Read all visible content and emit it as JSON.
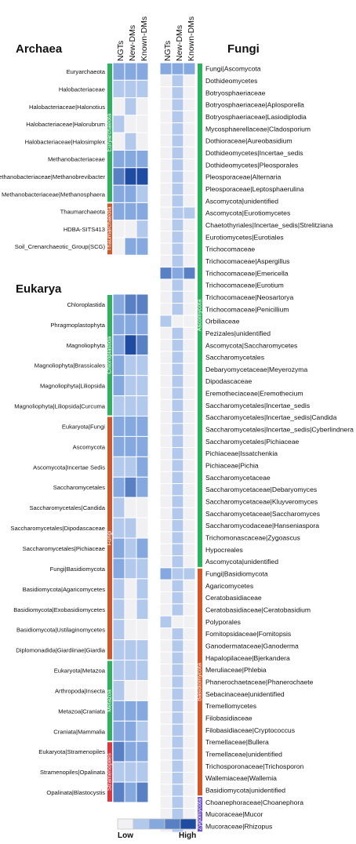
{
  "chart_data": [
    {
      "type": "heatmap",
      "title": "",
      "columns": [
        "NGTs",
        "New-DMs",
        "Known-DMs"
      ],
      "scale": [
        "#f1f1f4",
        "#b3c9ec",
        "#85a8df",
        "#5a80c4",
        "#1f4ba0"
      ],
      "sections": [
        {
          "name": "Archaea",
          "rows": [
            {
              "label": "Euryarchaeota",
              "values": [
                2,
                2,
                2
              ]
            },
            {
              "label": "Halobacteriaceae",
              "values": [
                1,
                1,
                1
              ]
            },
            {
              "label": "Halobacteriaceae|Halonotius",
              "values": [
                0,
                1,
                0
              ]
            },
            {
              "label": "Halobacteriaceae|Halorubrum",
              "values": [
                1,
                0,
                0
              ]
            },
            {
              "label": "Halobacteriaceae|Halosimplex",
              "values": [
                0,
                1,
                0
              ]
            },
            {
              "label": "Methanobacteriaceae",
              "values": [
                2,
                2,
                2
              ]
            },
            {
              "label": "Methanobacteriaceae|Methanobrevibacter",
              "values": [
                3,
                4,
                4
              ]
            },
            {
              "label": "Methanobacteriaceae|Methanosphaera",
              "values": [
                2,
                2,
                1
              ]
            },
            {
              "label": "Thaumarchaeota",
              "values": [
                2,
                2,
                2
              ]
            },
            {
              "label": "HDBA-SITS413",
              "values": [
                0,
                0,
                1
              ]
            },
            {
              "label": "Soil_Crenarchaeotic_Group(SCG)",
              "values": [
                0,
                2,
                2
              ]
            }
          ],
          "groups": [
            {
              "name": "Euryarchaeota",
              "from": 0,
              "to": 7,
              "color": "#2db35d"
            },
            {
              "name": "Thaumarchaeota",
              "from": 8,
              "to": 10,
              "color": "#d2572a"
            }
          ]
        },
        {
          "name": "Eukarya",
          "rows": [
            {
              "label": "Chloroplastida",
              "values": [
                2,
                3,
                3
              ]
            },
            {
              "label": "Phragmoplastophyta",
              "values": [
                2,
                2,
                2
              ]
            },
            {
              "label": "Magnoliophyta",
              "values": [
                2,
                4,
                3
              ]
            },
            {
              "label": "Magnoliophyta|Brassicales",
              "values": [
                2,
                1,
                1
              ]
            },
            {
              "label": "Magnoliophyta|Liliopsida",
              "values": [
                2,
                1,
                1
              ]
            },
            {
              "label": "Magnoliophyta|Liliopsida|Curcuma",
              "values": [
                1,
                1,
                1
              ]
            },
            {
              "label": "Eukaryota|Fungi",
              "values": [
                2,
                2,
                2
              ]
            },
            {
              "label": "Ascomycota",
              "values": [
                2,
                2,
                2
              ]
            },
            {
              "label": "Ascomycota|Incertae Sedis",
              "values": [
                1,
                1,
                2
              ]
            },
            {
              "label": "Saccharomycetales",
              "values": [
                2,
                3,
                2
              ]
            },
            {
              "label": "Saccharomycetales|Candida",
              "values": [
                1,
                0,
                0
              ]
            },
            {
              "label": "Saccharomycetales|Dipodascaceae",
              "values": [
                1,
                1,
                0
              ]
            },
            {
              "label": "Saccharomycetales|Pichiaceae",
              "values": [
                2,
                1,
                2
              ]
            },
            {
              "label": "Fungi|Basidiomycota",
              "values": [
                2,
                1,
                1
              ]
            },
            {
              "label": "Basidiomycota|Agaricomycetes",
              "values": [
                1,
                0,
                1
              ]
            },
            {
              "label": "Basidiomycota|Exobasidiomycetes",
              "values": [
                1,
                0,
                1
              ]
            },
            {
              "label": "Basidiomycota|Ustilaginomycetes",
              "values": [
                1,
                0,
                0
              ]
            },
            {
              "label": "Diplomonadida|Giardiinae|Giardia",
              "values": [
                1,
                1,
                1
              ]
            },
            {
              "label": "Eukaryota|Metazoa",
              "values": [
                1,
                1,
                1
              ]
            },
            {
              "label": "Arthropoda|Insecta",
              "values": [
                1,
                0,
                0
              ]
            },
            {
              "label": "Metazoa|Craniata",
              "values": [
                2,
                2,
                2
              ]
            },
            {
              "label": "Craniata|Mammalia",
              "values": [
                2,
                2,
                1
              ]
            },
            {
              "label": "Eukaryota|Stramenopiles",
              "values": [
                3,
                2,
                2
              ]
            },
            {
              "label": "Stramenopiles|Opalinata",
              "values": [
                1,
                1,
                1
              ]
            },
            {
              "label": "Opalinata|Blastocystis",
              "values": [
                3,
                2,
                3
              ]
            }
          ],
          "groups": [
            {
              "name": "Chloroplastida",
              "from": 0,
              "to": 5,
              "color": "#2db35d"
            },
            {
              "name": "Fungi",
              "from": 6,
              "to": 17,
              "color": "#d2572a"
            },
            {
              "name": "Metazoa",
              "from": 18,
              "to": 21,
              "color": "#2db35d"
            },
            {
              "name": "Stramenopiles",
              "from": 22,
              "to": 24,
              "color": "#e2343c"
            }
          ]
        },
        {
          "name": "Fungi",
          "rows": [
            {
              "label": "Fungi|Ascomycota",
              "values": [
                2,
                2,
                2
              ]
            },
            {
              "label": "Dothideomycetes",
              "values": [
                0,
                1,
                0
              ]
            },
            {
              "label": "Botryosphaeriaceae",
              "values": [
                0,
                1,
                0
              ]
            },
            {
              "label": "Botryosphaeriaceae|Aplosporella",
              "values": [
                0,
                1,
                0
              ]
            },
            {
              "label": "Botryosphaeriaceae|Lasiodiplodia",
              "values": [
                0,
                1,
                0
              ]
            },
            {
              "label": "Mycosphaerellaceae|Cladosporium",
              "values": [
                0,
                1,
                0
              ]
            },
            {
              "label": "Dothioraceae|Aureobasidium",
              "values": [
                0,
                1,
                0
              ]
            },
            {
              "label": "Dothideomycetes|Incertae_sedis",
              "values": [
                0,
                1,
                0
              ]
            },
            {
              "label": "Dothideomycetes|Pleosporales",
              "values": [
                0,
                1,
                0
              ]
            },
            {
              "label": "Pleosporaceae|Alternaria",
              "values": [
                0,
                1,
                0
              ]
            },
            {
              "label": "Pleosporaceae|Leptosphaerulina",
              "values": [
                0,
                1,
                0
              ]
            },
            {
              "label": "Ascomycota|unidentified",
              "values": [
                0,
                1,
                0
              ]
            },
            {
              "label": "Ascomycota|Eurotiomycetes",
              "values": [
                0,
                1,
                1
              ]
            },
            {
              "label": "Chaetothyriales|Incertae_sedis|Strelitziana",
              "values": [
                0,
                1,
                0
              ]
            },
            {
              "label": "Eurotiomycetes|Eurotiales",
              "values": [
                0,
                1,
                0
              ]
            },
            {
              "label": "Trichocomaceae",
              "values": [
                0,
                1,
                0
              ]
            },
            {
              "label": "Trichocomaceae|Aspergillus",
              "values": [
                0,
                1,
                0
              ]
            },
            {
              "label": "Trichocomaceae|Emericella",
              "values": [
                3,
                2,
                3
              ]
            },
            {
              "label": "Trichocomaceae|Eurotium",
              "values": [
                0,
                1,
                0
              ]
            },
            {
              "label": "Trichocomaceae|Neosartorya",
              "values": [
                0,
                1,
                0
              ]
            },
            {
              "label": "Trichocomaceae|Penicillium",
              "values": [
                0,
                1,
                0
              ]
            },
            {
              "label": "Orbiliaceae",
              "values": [
                1,
                0,
                0
              ]
            },
            {
              "label": "Pezizales|unidentified",
              "values": [
                0,
                1,
                0
              ]
            },
            {
              "label": "Ascomycota|Saccharomycetes",
              "values": [
                0,
                1,
                0
              ]
            },
            {
              "label": "Saccharomycetales",
              "values": [
                0,
                1,
                0
              ]
            },
            {
              "label": "Debaryomycetaceae|Meyerozyma",
              "values": [
                0,
                1,
                0
              ]
            },
            {
              "label": "Dipodascaceae",
              "values": [
                0,
                1,
                0
              ]
            },
            {
              "label": "Eremotheciaceae|Eremothecium",
              "values": [
                0,
                1,
                0
              ]
            },
            {
              "label": "Saccharomycetales|Incertae_sedis",
              "values": [
                0,
                1,
                0
              ]
            },
            {
              "label": "Saccharomycetales|Incertae_sedis|Candida",
              "values": [
                0,
                1,
                0
              ]
            },
            {
              "label": "Saccharomycetales|Incertae_sedis|Cyberlindnera",
              "values": [
                0,
                1,
                0
              ]
            },
            {
              "label": "Saccharomycetales|Pichiaceae",
              "values": [
                0,
                1,
                0
              ]
            },
            {
              "label": "Pichiaceae|Issatchenkia",
              "values": [
                0,
                1,
                0
              ]
            },
            {
              "label": "Pichiaceae|Pichia",
              "values": [
                0,
                1,
                0
              ]
            },
            {
              "label": "Saccharomycetaceae",
              "values": [
                0,
                1,
                0
              ]
            },
            {
              "label": "Saccharomycetaceae|Debaryomyces",
              "values": [
                0,
                1,
                0
              ]
            },
            {
              "label": "Saccharomycetaceae|Kluyveromyces",
              "values": [
                0,
                1,
                0
              ]
            },
            {
              "label": "Saccharomycetaceae|Saccharomyces",
              "values": [
                0,
                1,
                0
              ]
            },
            {
              "label": "Saccharomycodaceae|Hanseniaspora",
              "values": [
                0,
                1,
                0
              ]
            },
            {
              "label": "Trichomonascaceae|Zygoascus",
              "values": [
                0,
                1,
                0
              ]
            },
            {
              "label": "Hypocreales",
              "values": [
                0,
                1,
                0
              ]
            },
            {
              "label": "Ascomycota|unidentified",
              "values": [
                0,
                1,
                0
              ]
            },
            {
              "label": "Fungi|Basidiomycota",
              "values": [
                2,
                1,
                1
              ]
            },
            {
              "label": "Agaricomycetes",
              "values": [
                0,
                1,
                0
              ]
            },
            {
              "label": "Ceratobasidiaceae",
              "values": [
                0,
                1,
                0
              ]
            },
            {
              "label": "Ceratobasidiaceae|Ceratobasidium",
              "values": [
                0,
                1,
                0
              ]
            },
            {
              "label": "Polyporales",
              "values": [
                1,
                0,
                0
              ]
            },
            {
              "label": "Fomitopsidaceae|Fomitopsis",
              "values": [
                0,
                1,
                0
              ]
            },
            {
              "label": "Ganodermataceae|Ganoderma",
              "values": [
                0,
                1,
                0
              ]
            },
            {
              "label": "Hapalopilaceae|Bjerkandera",
              "values": [
                0,
                1,
                0
              ]
            },
            {
              "label": "Meruliaceae|Phlebia",
              "values": [
                0,
                1,
                0
              ]
            },
            {
              "label": "Phanerochaetaceae|Phanerochaete",
              "values": [
                0,
                1,
                0
              ]
            },
            {
              "label": "Sebacinaceae|unidentified",
              "values": [
                0,
                1,
                0
              ]
            },
            {
              "label": "Tremellomycetes",
              "values": [
                0,
                1,
                0
              ]
            },
            {
              "label": "Filobasidiaceae",
              "values": [
                0,
                1,
                0
              ]
            },
            {
              "label": "Filobasidiaceae|Cryptococcus",
              "values": [
                0,
                1,
                0
              ]
            },
            {
              "label": "Tremellaceae|Bullera",
              "values": [
                0,
                1,
                0
              ]
            },
            {
              "label": "Tremellaceae|unidentified",
              "values": [
                0,
                1,
                0
              ]
            },
            {
              "label": "Trichosporonaceae|Trichosporon",
              "values": [
                0,
                1,
                0
              ]
            },
            {
              "label": "Wallemiaceae|Wallemia",
              "values": [
                0,
                1,
                0
              ]
            },
            {
              "label": "Basidiomycota|unidentified",
              "values": [
                0,
                1,
                0
              ]
            },
            {
              "label": "Choanephoraceae|Choanephora",
              "values": [
                0,
                1,
                0
              ]
            },
            {
              "label": "Mucoraceae|Mucor",
              "values": [
                0,
                1,
                0
              ]
            },
            {
              "label": "Mucoraceae|Rhizopus",
              "values": [
                0,
                1,
                0
              ]
            }
          ],
          "groups": [
            {
              "name": "Ascomycota",
              "from": 0,
              "to": 41,
              "color": "#2db35d"
            },
            {
              "name": "Basidiomycota",
              "from": 42,
              "to": 60,
              "color": "#d2572a"
            },
            {
              "name": "Zygomycota",
              "from": 61,
              "to": 63,
              "color": "#6a4fc2"
            }
          ]
        }
      ],
      "legend": {
        "low_label": "Low",
        "high_label": "High"
      }
    }
  ]
}
